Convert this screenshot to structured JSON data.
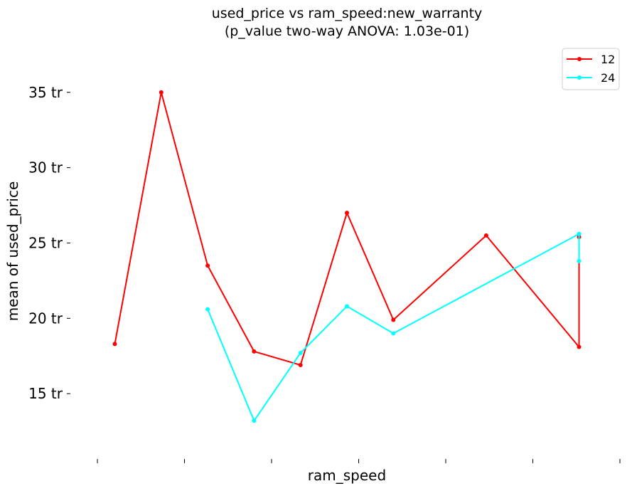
{
  "chart_data": {
    "type": "line",
    "title": "used_price vs ram_speed:new_warranty",
    "subtitle": "(p_value two-way ANOVA: 1.03e-01)",
    "xlabel": "ram_speed",
    "ylabel": "mean of used_price",
    "ylim": [
      10.9,
      38.2
    ],
    "yticks": [
      {
        "value": 15,
        "label": "15 tr"
      },
      {
        "value": 20,
        "label": "20 tr"
      },
      {
        "value": 25,
        "label": "25 tr"
      },
      {
        "value": 30,
        "label": "30 tr"
      },
      {
        "value": 35,
        "label": "35 tr"
      }
    ],
    "x_tick_count": 7,
    "x_tick_labels": [],
    "legend": {
      "position": "top-right"
    },
    "grid": false,
    "series": [
      {
        "name": "12",
        "color": "#ff0000",
        "points": [
          {
            "x": 1,
            "y": 18.3
          },
          {
            "x": 2,
            "y": 35.0
          },
          {
            "x": 3,
            "y": 23.5
          },
          {
            "x": 4,
            "y": 17.8
          },
          {
            "x": 5,
            "y": 16.9
          },
          {
            "x": 6,
            "y": 27.0
          },
          {
            "x": 7,
            "y": 19.9
          },
          {
            "x": 9,
            "y": 25.5
          },
          {
            "x": 11,
            "y": 18.1
          },
          {
            "x": 11,
            "y": 25.4
          }
        ]
      },
      {
        "name": "24",
        "color": "#00ffff",
        "points": [
          {
            "x": 3,
            "y": 20.6
          },
          {
            "x": 4,
            "y": 13.2
          },
          {
            "x": 5,
            "y": 17.7
          },
          {
            "x": 6,
            "y": 20.8
          },
          {
            "x": 7,
            "y": 19.0
          },
          {
            "x": 11,
            "y": 25.6
          },
          {
            "x": 11,
            "y": 23.8
          }
        ]
      }
    ]
  }
}
